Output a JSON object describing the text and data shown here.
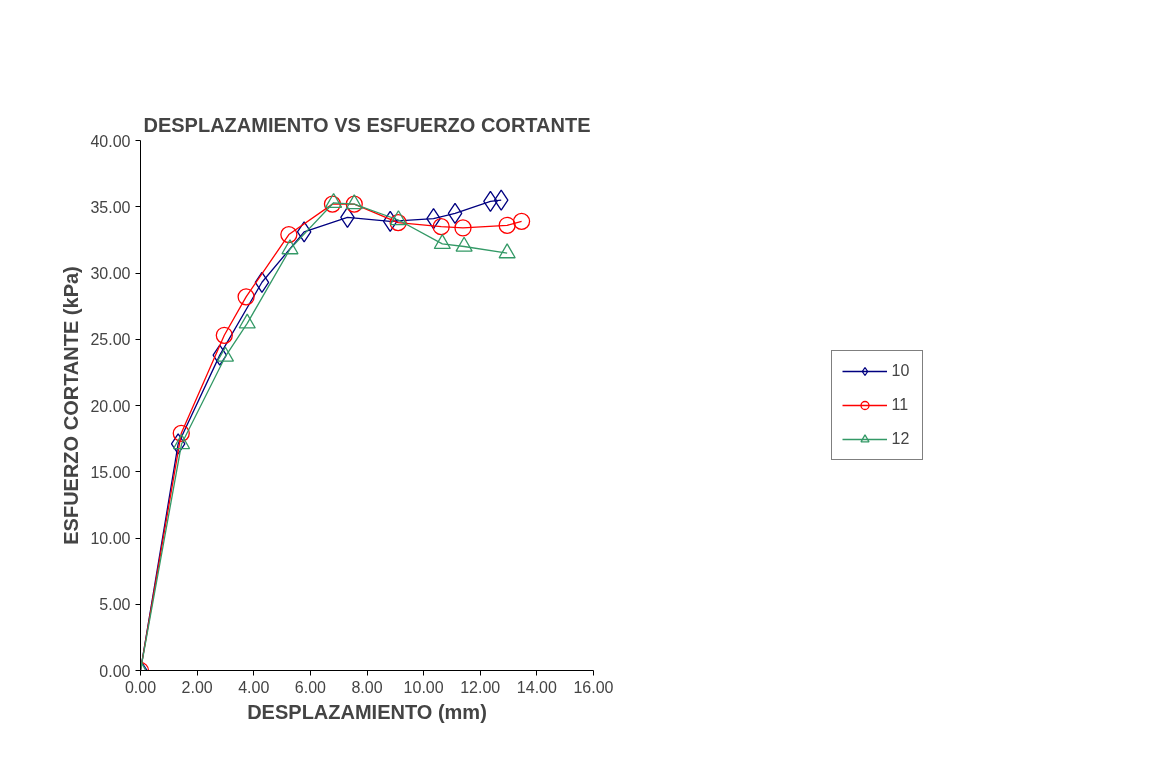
{
  "chart_data": {
    "type": "line",
    "title": "DESPLAZAMIENTO VS ESFUERZO CORTANTE",
    "xlabel": "DESPLAZAMIENTO (mm)",
    "ylabel": "ESFUERZO CORTANTE (kPa)",
    "xlim": [
      0,
      16
    ],
    "ylim": [
      0,
      40
    ],
    "xticks": [
      {
        "value": 0,
        "label": "0.00"
      },
      {
        "value": 2,
        "label": "2.00"
      },
      {
        "value": 4,
        "label": "4.00"
      },
      {
        "value": 6,
        "label": "6.00"
      },
      {
        "value": 8,
        "label": "8.00"
      },
      {
        "value": 10,
        "label": "10.00"
      },
      {
        "value": 12,
        "label": "12.00"
      },
      {
        "value": 14,
        "label": "14.00"
      },
      {
        "value": 16,
        "label": "16.00"
      }
    ],
    "yticks": [
      {
        "value": 0,
        "label": "0.00"
      },
      {
        "value": 5,
        "label": "5.00"
      },
      {
        "value": 10,
        "label": "10.00"
      },
      {
        "value": 15,
        "label": "15.00"
      },
      {
        "value": 20,
        "label": "20.00"
      },
      {
        "value": 25,
        "label": "25.00"
      },
      {
        "value": 30,
        "label": "30.00"
      },
      {
        "value": 35,
        "label": "35.00"
      },
      {
        "value": 40,
        "label": "40.00"
      }
    ],
    "grid": false,
    "legend": "right",
    "line_style": "solid",
    "series": [
      {
        "name": "10",
        "color": "#000080",
        "marker": "diamond",
        "x": [
          0,
          1.33,
          2.8,
          4.29,
          5.78,
          7.31,
          8.82,
          10.35,
          11.11,
          12.36,
          12.74
        ],
        "values": [
          0,
          17.1,
          23.8,
          29.3,
          33.1,
          34.2,
          33.9,
          34.1,
          34.5,
          35.4,
          35.5
        ]
      },
      {
        "name": "11",
        "color": "#ff0000",
        "marker": "circle",
        "x": [
          0,
          1.44,
          2.96,
          3.73,
          5.24,
          6.78,
          7.55,
          9.1,
          10.62,
          11.39,
          12.95,
          13.46
        ],
        "values": [
          0,
          17.9,
          25.3,
          28.2,
          32.9,
          35.2,
          35.2,
          33.8,
          33.5,
          33.4,
          33.6,
          33.9
        ]
      },
      {
        "name": "12",
        "color": "#339966",
        "marker": "triangle",
        "x": [
          0,
          1.45,
          3.0,
          3.77,
          5.28,
          6.82,
          7.55,
          9.11,
          10.66,
          11.43,
          12.95
        ],
        "values": [
          0,
          17.1,
          23.7,
          26.2,
          31.8,
          35.3,
          35.2,
          34.0,
          32.2,
          32.0,
          31.5
        ]
      }
    ]
  }
}
